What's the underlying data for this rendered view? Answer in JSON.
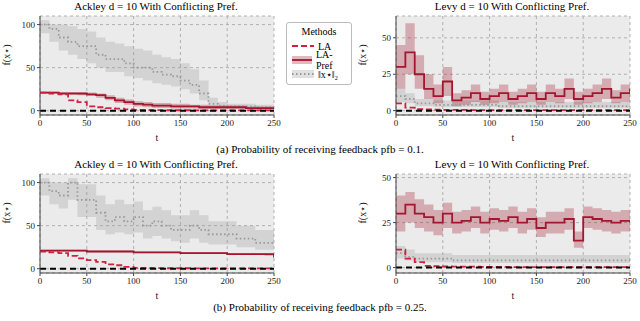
{
  "captions": [
    "(a) Probability of receiving feedback pfb = 0.1.",
    "(b) Probability of receiving feedback pfb = 0.25."
  ],
  "legend_title": "Methods",
  "chart_data": [
    {
      "type": "line",
      "title": "Ackley d = 10 With Conflicting Pref.",
      "xlabel": "t",
      "ylabel": "f(x⋆)",
      "legend": "right",
      "grid": true,
      "x": [
        0,
        10,
        20,
        30,
        40,
        50,
        60,
        70,
        80,
        90,
        100,
        110,
        120,
        130,
        140,
        150,
        160,
        170,
        180,
        190,
        200,
        210,
        220,
        230,
        240,
        250
      ],
      "xlim": [
        0,
        250
      ],
      "xticks": [
        0,
        50,
        100,
        150,
        200,
        250
      ],
      "ylim": [
        -5,
        110
      ],
      "yticks": [
        0,
        50,
        100
      ],
      "reference_line": 0,
      "series": [
        {
          "name": "‖x⋆‖₂",
          "color": "#9a9a9a",
          "line_style": "dotted",
          "values": [
            100,
            95,
            85,
            80,
            75,
            75,
            65,
            60,
            60,
            55,
            50,
            50,
            45,
            42,
            40,
            35,
            30,
            20,
            8,
            6,
            5,
            5,
            5,
            4,
            4,
            4
          ],
          "lower": [
            90,
            80,
            70,
            65,
            60,
            55,
            50,
            45,
            45,
            40,
            38,
            35,
            32,
            30,
            28,
            25,
            20,
            12,
            4,
            3,
            3,
            3,
            3,
            2,
            2,
            2
          ],
          "upper": [
            105,
            100,
            100,
            98,
            95,
            92,
            85,
            80,
            78,
            75,
            72,
            70,
            65,
            62,
            60,
            55,
            48,
            35,
            15,
            10,
            8,
            8,
            8,
            7,
            7,
            7
          ]
        },
        {
          "name": "LA-Pref",
          "color": "#a3162f",
          "line_style": "solid",
          "values": [
            21,
            21,
            20,
            20,
            20,
            19,
            18,
            15,
            12,
            10,
            8,
            7,
            6,
            6,
            5,
            5,
            5,
            4,
            4,
            4,
            4,
            4,
            3,
            3,
            3,
            3
          ],
          "lower": [
            20,
            20,
            19,
            19,
            18,
            17,
            15,
            12,
            9,
            7,
            5,
            4,
            3,
            3,
            2.5,
            2.5,
            2.5,
            2,
            2,
            2,
            2,
            2,
            1.5,
            1.5,
            1.5,
            1.5
          ],
          "upper": [
            22,
            22,
            21,
            21,
            21,
            21,
            20,
            18,
            15,
            13,
            11,
            10,
            9,
            9,
            8,
            8,
            7,
            7,
            6,
            6,
            6,
            6,
            5,
            5,
            5,
            5
          ]
        },
        {
          "name": "LA",
          "color": "#d0213f",
          "line_style": "dashed",
          "values": [
            21,
            20,
            19,
            12,
            10,
            5,
            4,
            3,
            2.5,
            1.5,
            1,
            0.8,
            0.6,
            0.5,
            0.5,
            0.5,
            0.4,
            0.4,
            0.4,
            0.4,
            0.3,
            0.3,
            0.3,
            0.3,
            0.3,
            0.3
          ]
        }
      ]
    },
    {
      "type": "line",
      "title": "Levy d = 10 With Conflicting Pref.",
      "xlabel": "t",
      "ylabel": "f(x⋆)",
      "grid": true,
      "x": [
        0,
        10,
        20,
        30,
        40,
        50,
        60,
        70,
        80,
        90,
        100,
        110,
        120,
        130,
        140,
        150,
        160,
        170,
        180,
        190,
        200,
        210,
        220,
        230,
        240,
        250
      ],
      "xlim": [
        0,
        250
      ],
      "xticks": [
        0,
        50,
        100,
        150,
        200,
        250
      ],
      "ylim": [
        -3,
        65
      ],
      "yticks": [
        0,
        25,
        50
      ],
      "reference_line": 0,
      "series": [
        {
          "name": "‖x⋆‖₂",
          "color": "#9a9a9a",
          "line_style": "dotted",
          "values": [
            10,
            8,
            5,
            5,
            4,
            4,
            4,
            4,
            4,
            4,
            4,
            3,
            3,
            3,
            3,
            3,
            3,
            3,
            3,
            3,
            3,
            3,
            3,
            3,
            3,
            3
          ],
          "lower": [
            6,
            5,
            3,
            3,
            2.5,
            2.5,
            2.5,
            2.5,
            2.5,
            2.5,
            2.5,
            2,
            2,
            2,
            2,
            2,
            2,
            2,
            2,
            2,
            2,
            2,
            2,
            2,
            2,
            2
          ],
          "upper": [
            15,
            12,
            8,
            8,
            7,
            7,
            7,
            7,
            7,
            7,
            7,
            6,
            6,
            6,
            6,
            6,
            6,
            6,
            6,
            6,
            6,
            6,
            6,
            6,
            6,
            6
          ]
        },
        {
          "name": "LA-Pref",
          "color": "#a3162f",
          "line_style": "solid",
          "values": [
            30,
            40,
            25,
            15,
            10,
            20,
            7,
            9,
            12,
            8,
            10,
            12,
            8,
            10,
            12,
            8,
            12,
            10,
            15,
            8,
            10,
            12,
            15,
            9,
            12,
            15
          ],
          "lower": [
            15,
            25,
            15,
            8,
            5,
            10,
            3,
            4,
            6,
            4,
            5,
            6,
            4,
            5,
            6,
            4,
            6,
            5,
            8,
            4,
            5,
            6,
            8,
            5,
            6,
            8
          ],
          "upper": [
            45,
            60,
            38,
            25,
            18,
            30,
            12,
            14,
            18,
            13,
            15,
            18,
            13,
            15,
            18,
            13,
            18,
            15,
            22,
            13,
            15,
            18,
            22,
            14,
            18,
            22
          ]
        },
        {
          "name": "LA",
          "color": "#d0213f",
          "line_style": "dashed",
          "values": [
            5,
            2,
            1,
            0.8,
            0.6,
            0.5,
            0.5,
            0.5,
            0.4,
            0.4,
            0.4,
            0.4,
            0.3,
            0.3,
            0.3,
            0.3,
            0.3,
            0.3,
            0.3,
            0.3,
            0.3,
            0.3,
            0.3,
            0.3,
            0.3,
            0.3
          ]
        }
      ]
    },
    {
      "type": "line",
      "title": "Ackley d = 10 With Conflicting Pref.",
      "xlabel": "t",
      "ylabel": "f(x⋆)",
      "grid": true,
      "x": [
        0,
        10,
        20,
        30,
        40,
        50,
        60,
        70,
        80,
        90,
        100,
        110,
        120,
        130,
        140,
        150,
        160,
        170,
        180,
        190,
        200,
        210,
        220,
        230,
        240,
        250
      ],
      "xlim": [
        0,
        250
      ],
      "xticks": [
        0,
        50,
        100,
        150,
        200,
        250
      ],
      "ylim": [
        -5,
        110
      ],
      "yticks": [
        0,
        50,
        100
      ],
      "reference_line": 0,
      "series": [
        {
          "name": "‖x⋆‖₂",
          "color": "#9a9a9a",
          "line_style": "dotted",
          "values": [
            100,
            90,
            85,
            100,
            80,
            80,
            65,
            55,
            60,
            55,
            60,
            50,
            55,
            50,
            45,
            45,
            50,
            45,
            40,
            40,
            40,
            35,
            35,
            30,
            30,
            30
          ],
          "lower": [
            85,
            75,
            70,
            80,
            60,
            60,
            45,
            40,
            42,
            40,
            42,
            35,
            38,
            35,
            32,
            30,
            35,
            30,
            28,
            28,
            28,
            25,
            25,
            22,
            22,
            22
          ],
          "upper": [
            105,
            100,
            100,
            105,
            98,
            98,
            85,
            75,
            80,
            75,
            78,
            68,
            72,
            68,
            62,
            62,
            68,
            62,
            55,
            55,
            55,
            50,
            50,
            45,
            45,
            45
          ]
        },
        {
          "name": "LA-Pref",
          "color": "#a3162f",
          "line_style": "solid",
          "values": [
            21,
            21,
            21,
            21,
            21,
            20,
            20,
            20,
            20,
            20,
            19,
            19,
            19,
            19,
            19,
            18,
            18,
            18,
            18,
            18,
            17,
            17,
            17,
            17,
            17,
            13
          ],
          "lower": [
            20,
            20,
            20,
            20,
            20,
            19,
            19,
            19,
            19,
            19,
            18,
            18,
            18,
            18,
            18,
            17,
            17,
            17,
            17,
            17,
            16,
            16,
            16,
            16,
            15,
            11
          ],
          "upper": [
            22,
            22,
            22,
            22,
            22,
            21,
            21,
            21,
            21,
            21,
            20,
            20,
            20,
            20,
            20,
            19,
            19,
            19,
            19,
            19,
            18,
            18,
            18,
            18,
            18,
            15
          ]
        },
        {
          "name": "LA",
          "color": "#d0213f",
          "line_style": "dashed",
          "values": [
            20,
            19,
            18,
            15,
            12,
            10,
            8,
            5,
            4,
            2,
            1,
            0.8,
            0.6,
            0.5,
            0.5,
            0.5,
            0.4,
            0.4,
            0.4,
            0.4,
            0.3,
            0.3,
            0.3,
            0.3,
            0.3,
            0.3
          ]
        }
      ]
    },
    {
      "type": "line",
      "title": "Levy d = 10 With Conflicting Pref.",
      "xlabel": "t",
      "ylabel": "f(x⋆)",
      "grid": true,
      "x": [
        0,
        10,
        20,
        30,
        40,
        50,
        60,
        70,
        80,
        90,
        100,
        110,
        120,
        130,
        140,
        150,
        160,
        170,
        180,
        190,
        200,
        210,
        220,
        230,
        240,
        250
      ],
      "xlim": [
        0,
        250
      ],
      "xticks": [
        0,
        50,
        100,
        150,
        200,
        250
      ],
      "ylim": [
        -3,
        52
      ],
      "yticks": [
        0,
        25,
        50
      ],
      "reference_line": 0,
      "series": [
        {
          "name": "‖x⋆‖₂",
          "color": "#9a9a9a",
          "line_style": "dotted",
          "values": [
            8,
            6,
            5,
            5,
            5,
            5,
            4,
            4,
            4,
            4,
            4,
            4,
            4,
            4,
            4,
            4,
            4,
            4,
            4,
            4,
            4,
            4,
            4,
            4,
            4,
            4
          ],
          "lower": [
            5,
            4,
            3,
            3,
            3,
            3,
            2.5,
            2.5,
            2.5,
            2.5,
            2.5,
            2.5,
            2.5,
            2.5,
            2.5,
            2.5,
            2.5,
            2.5,
            2.5,
            2.5,
            2.5,
            2.5,
            2.5,
            2.5,
            2.5,
            2.5
          ],
          "upper": [
            12,
            10,
            8,
            8,
            8,
            8,
            7,
            7,
            7,
            7,
            7,
            7,
            7,
            7,
            7,
            7,
            7,
            7,
            7,
            7,
            7,
            7,
            7,
            7,
            7,
            7
          ]
        },
        {
          "name": "LA-Pref",
          "color": "#a3162f",
          "line_style": "solid",
          "values": [
            30,
            35,
            30,
            28,
            25,
            30,
            25,
            26,
            28,
            25,
            27,
            26,
            28,
            25,
            27,
            22,
            25,
            25,
            27,
            15,
            28,
            27,
            26,
            25,
            26,
            25
          ],
          "lower": [
            20,
            25,
            22,
            20,
            18,
            22,
            19,
            20,
            22,
            19,
            21,
            20,
            22,
            19,
            21,
            17,
            19,
            19,
            21,
            11,
            22,
            21,
            20,
            19,
            20,
            19
          ],
          "upper": [
            40,
            42,
            38,
            35,
            32,
            36,
            31,
            32,
            34,
            31,
            33,
            32,
            34,
            31,
            33,
            28,
            31,
            31,
            33,
            20,
            34,
            33,
            32,
            31,
            32,
            31
          ]
        },
        {
          "name": "LA",
          "color": "#d0213f",
          "line_style": "dashed",
          "values": [
            10,
            5,
            3,
            1,
            0.8,
            0.6,
            0.5,
            0.5,
            0.5,
            0.4,
            0.4,
            0.4,
            0.3,
            0.3,
            0.3,
            0.3,
            0.3,
            0.3,
            0.3,
            0.3,
            0.3,
            0.3,
            0.3,
            0.3,
            0.3,
            0.3
          ]
        }
      ]
    }
  ]
}
